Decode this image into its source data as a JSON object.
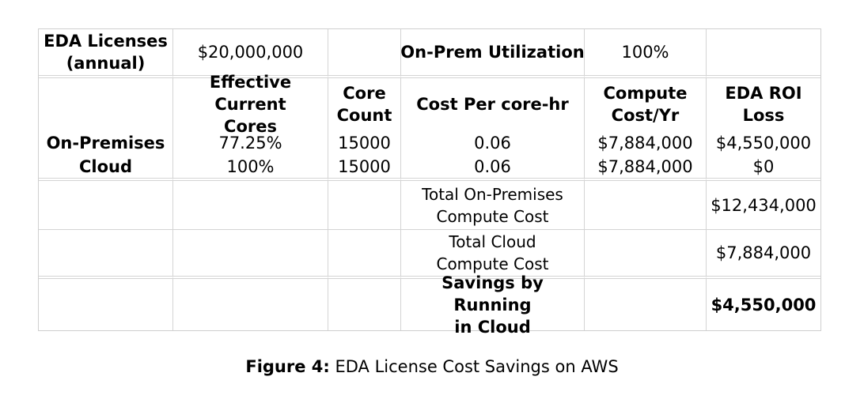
{
  "table": {
    "row1": {
      "label_line1": "EDA Licenses",
      "label_line2": "(annual)",
      "license_value": "$20,000,000",
      "empty1": "",
      "utilization_label": "On-Prem Utilization",
      "utilization_value": "100%",
      "empty2": ""
    },
    "header": {
      "blank": "",
      "col_effective_line1": "Effective Current",
      "col_effective_line2": "Cores",
      "col_core_line1": "Core",
      "col_core_line2": "Count",
      "col_cost_per": "Cost Per core-hr",
      "col_compute_line1": "Compute",
      "col_compute_line2": "Cost/Yr",
      "col_roi_line1": "EDA ROI",
      "col_roi_line2": "Loss"
    },
    "rows": [
      {
        "label": "On-Premises",
        "effective": "77.25%",
        "core_count": "15000",
        "cost_per": "0.06",
        "compute_cost": "$7,884,000",
        "roi_loss": "$4,550,000"
      },
      {
        "label": "Cloud",
        "effective": "100%",
        "core_count": "15000",
        "cost_per": "0.06",
        "compute_cost": "$7,884,000",
        "roi_loss": "$0"
      }
    ],
    "totals": {
      "onprem_line1": "Total On-Premises",
      "onprem_line2": "Compute Cost",
      "onprem_value": "$12,434,000",
      "cloud_line1": "Total Cloud",
      "cloud_line2": "Compute Cost",
      "cloud_value": "$7,884,000",
      "savings_line1": "Savings by Running",
      "savings_line2": "in Cloud",
      "savings_value": "$4,550,000"
    }
  },
  "caption": {
    "prefix": "Figure 4:",
    "text": " EDA License Cost Savings on AWS"
  }
}
